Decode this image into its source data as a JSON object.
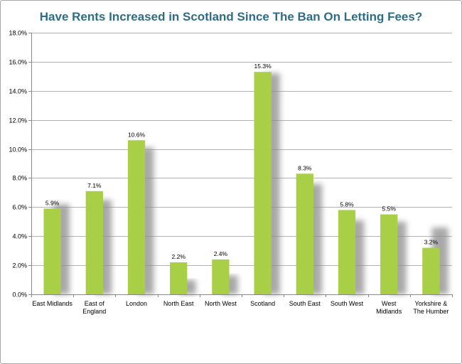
{
  "chart_data": {
    "type": "bar",
    "title": "Have Rents Increased in Scotland Since The Ban On Letting Fees?",
    "xlabel": "",
    "ylabel": "",
    "ylim": [
      0,
      18
    ],
    "grid": true,
    "y_ticks": [
      "0.0%",
      "2.0%",
      "4.0%",
      "6.0%",
      "8.0%",
      "10.0%",
      "12.0%",
      "14.0%",
      "16.0%",
      "18.0%"
    ],
    "categories": [
      [
        "East Midlands"
      ],
      [
        "East of",
        "England"
      ],
      [
        "London"
      ],
      [
        "North East"
      ],
      [
        "North West"
      ],
      [
        "Scotland"
      ],
      [
        "South East"
      ],
      [
        "South West"
      ],
      [
        "West",
        "Midlands"
      ],
      [
        "Yorkshire &",
        "The Humber"
      ]
    ],
    "values": [
      5.9,
      7.1,
      10.6,
      2.2,
      2.4,
      15.3,
      8.3,
      5.8,
      5.5,
      3.2
    ],
    "value_labels": [
      "5.9%",
      "7.1%",
      "10.6%",
      "2.2%",
      "2.4%",
      "15.3%",
      "8.3%",
      "5.8%",
      "5.5%",
      "3.2%"
    ],
    "shadow_values": [
      6.2,
      6.5,
      10.1,
      1.0,
      1.3,
      15.2,
      7.6,
      5.1,
      5.0,
      4.6
    ],
    "bar_color": "#a8cf45",
    "shadow_color": "#8c8c8c",
    "title_color": "#2f6d86"
  }
}
